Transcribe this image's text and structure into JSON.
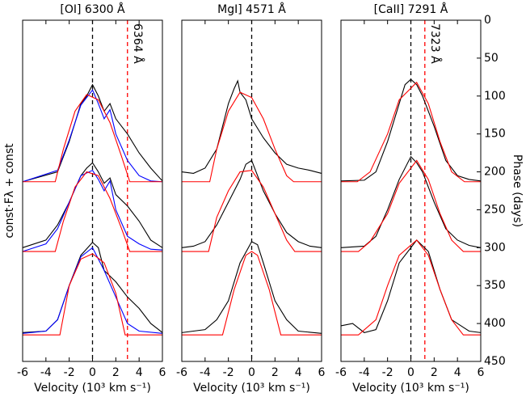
{
  "chart_data": [
    {
      "type": "line",
      "title": "[OI] 6300 Å",
      "xlabel": "Velocity (10³ km s⁻¹)",
      "ylabel": "const·Fλ + const",
      "xlim": [
        -6,
        6
      ],
      "xticks": [
        -6,
        -4,
        -2,
        0,
        2,
        4,
        6
      ],
      "ylim": [
        450,
        0
      ],
      "vlines": [
        {
          "x": 0,
          "color": "#000000"
        },
        {
          "x": 3,
          "color": "#ff0000",
          "label": "6364 Å"
        }
      ],
      "series": [
        {
          "color": "#000000",
          "x": [
            -6,
            -3,
            -2,
            -1,
            -0.5,
            0,
            0.5,
            1,
            1.5,
            2,
            3,
            4,
            5,
            6
          ],
          "values": [
            213,
            200,
            160,
            110,
            100,
            85,
            100,
            120,
            110,
            130,
            150,
            175,
            195,
            212
          ]
        },
        {
          "color": "#0000ff",
          "x": [
            -6,
            -3,
            -2,
            -1,
            0,
            0.5,
            1,
            1.5,
            2,
            3,
            4,
            5,
            6
          ],
          "values": [
            213,
            198,
            158,
            112,
            92,
            110,
            130,
            118,
            150,
            185,
            205,
            212,
            213
          ]
        },
        {
          "color": "#ff0000",
          "x": [
            -6,
            -3.2,
            -2.5,
            -1.5,
            -0.5,
            0.5,
            1.5,
            2.5,
            3.2,
            6
          ],
          "values": [
            213,
            213,
            170,
            120,
            98,
            105,
            135,
            180,
            213,
            213
          ]
        },
        {
          "color": "#000000",
          "x": [
            -6,
            -4,
            -3,
            -2,
            -1,
            -0.5,
            0,
            0.5,
            1,
            1.5,
            2,
            3,
            4,
            5,
            6
          ],
          "values": [
            300,
            290,
            270,
            240,
            205,
            195,
            188,
            200,
            215,
            208,
            230,
            245,
            265,
            290,
            300
          ]
        },
        {
          "color": "#0000ff",
          "x": [
            -6,
            -4,
            -3,
            -2,
            -1,
            0,
            0.5,
            1,
            1.5,
            2,
            3,
            4,
            5,
            6
          ],
          "values": [
            305,
            295,
            275,
            240,
            205,
            198,
            210,
            225,
            212,
            250,
            285,
            295,
            302,
            303
          ]
        },
        {
          "color": "#ff0000",
          "x": [
            -6,
            -3.2,
            -2.5,
            -1.5,
            -0.5,
            0.5,
            1.5,
            2.5,
            3.2,
            6
          ],
          "values": [
            305,
            305,
            265,
            220,
            200,
            205,
            235,
            275,
            305,
            305
          ]
        },
        {
          "color": "#000000",
          "x": [
            -6,
            -4,
            -3,
            -2,
            -1,
            0,
            0.5,
            1,
            2,
            3,
            4,
            5,
            6
          ],
          "values": [
            412,
            410,
            395,
            350,
            310,
            293,
            300,
            330,
            345,
            365,
            380,
            400,
            412
          ]
        },
        {
          "color": "#0000ff",
          "x": [
            -6,
            -4,
            -3,
            -2,
            -1,
            0,
            1,
            2,
            3,
            4,
            6
          ],
          "values": [
            413,
            410,
            395,
            350,
            312,
            300,
            330,
            365,
            400,
            410,
            413
          ]
        },
        {
          "color": "#ff0000",
          "x": [
            -6,
            -2.8,
            -2,
            -1,
            0,
            1,
            2,
            2.8,
            6
          ],
          "values": [
            415,
            415,
            350,
            315,
            308,
            320,
            360,
            415,
            415
          ]
        }
      ]
    },
    {
      "type": "line",
      "title": "MgI] 4571 Å",
      "xlabel": "Velocity (10³ km s⁻¹)",
      "xlim": [
        -6,
        6
      ],
      "xticks": [
        -6,
        -4,
        -2,
        0,
        2,
        4,
        6
      ],
      "ylim": [
        450,
        0
      ],
      "vlines": [
        {
          "x": 0,
          "color": "#000000"
        }
      ],
      "series": [
        {
          "color": "#000000",
          "x": [
            -6,
            -5,
            -4,
            -3,
            -2,
            -1.5,
            -1.2,
            -1,
            -0.5,
            0,
            1,
            2,
            3,
            4,
            5,
            6
          ],
          "values": [
            200,
            202,
            195,
            170,
            110,
            90,
            80,
            95,
            105,
            130,
            155,
            175,
            190,
            195,
            198,
            202
          ]
        },
        {
          "color": "#ff0000",
          "x": [
            -6,
            -3.6,
            -3,
            -2,
            -1,
            0,
            1,
            2,
            3,
            3.6,
            6
          ],
          "values": [
            213,
            213,
            170,
            120,
            95,
            102,
            130,
            170,
            205,
            213,
            213
          ]
        },
        {
          "color": "#000000",
          "x": [
            -6,
            -5,
            -4,
            -3,
            -2,
            -1,
            -0.5,
            0,
            0.5,
            1,
            2,
            3,
            4,
            5,
            6
          ],
          "values": [
            300,
            298,
            292,
            270,
            240,
            210,
            190,
            185,
            205,
            225,
            255,
            280,
            292,
            298,
            300
          ]
        },
        {
          "color": "#ff0000",
          "x": [
            -6,
            -3.7,
            -3,
            -2,
            -1,
            0,
            1,
            2,
            3,
            3.7,
            6
          ],
          "values": [
            305,
            305,
            260,
            225,
            200,
            198,
            220,
            255,
            290,
            305,
            305
          ]
        },
        {
          "color": "#000000",
          "x": [
            -6,
            -4,
            -3,
            -2,
            -1,
            0,
            0.5,
            1,
            2,
            3,
            4,
            6
          ],
          "values": [
            412,
            408,
            395,
            370,
            320,
            292,
            296,
            320,
            370,
            395,
            410,
            413
          ]
        },
        {
          "color": "#ff0000",
          "x": [
            -6,
            -2.5,
            -1.5,
            -0.5,
            0,
            0.5,
            1.5,
            2.5,
            6
          ],
          "values": [
            415,
            415,
            355,
            310,
            305,
            310,
            355,
            415,
            415
          ]
        }
      ]
    },
    {
      "type": "line",
      "title": "[CaII] 7291 Å",
      "xlabel": "Velocity (10³ km s⁻¹)",
      "y2label": "Phase (days)",
      "xlim": [
        -6,
        6
      ],
      "xticks": [
        -6,
        -4,
        -2,
        0,
        2,
        4,
        6
      ],
      "ylim": [
        450,
        0
      ],
      "yticks": [
        0,
        50,
        100,
        150,
        200,
        250,
        300,
        350,
        400,
        450
      ],
      "vlines": [
        {
          "x": 0,
          "color": "#000000"
        },
        {
          "x": 1.2,
          "color": "#ff0000",
          "label": "7323 Å"
        }
      ],
      "series": [
        {
          "color": "#000000",
          "x": [
            -6,
            -4,
            -3,
            -2,
            -1,
            -0.5,
            0,
            0.5,
            1,
            2,
            3,
            4,
            5,
            6
          ],
          "values": [
            212,
            211,
            200,
            160,
            110,
            85,
            78,
            85,
            100,
            140,
            185,
            205,
            210,
            212
          ]
        },
        {
          "color": "#ff0000",
          "x": [
            -6,
            -4.6,
            -3.5,
            -2,
            -1,
            0.5,
            1.5,
            2.5,
            3.5,
            4.6,
            6
          ],
          "values": [
            213,
            213,
            200,
            150,
            105,
            82,
            110,
            160,
            200,
            213,
            213
          ]
        },
        {
          "color": "#000000",
          "x": [
            -6,
            -4,
            -3,
            -2,
            -1,
            0,
            0.5,
            1,
            2,
            3,
            4,
            5,
            6
          ],
          "values": [
            300,
            298,
            285,
            250,
            210,
            180,
            188,
            200,
            240,
            275,
            290,
            297,
            300
          ]
        },
        {
          "color": "#ff0000",
          "x": [
            -6,
            -4.5,
            -3.5,
            -2,
            -1,
            0.5,
            1.5,
            2.5,
            3.5,
            4.5,
            6
          ],
          "values": [
            305,
            305,
            292,
            255,
            215,
            185,
            210,
            255,
            290,
            305,
            305
          ]
        },
        {
          "color": "#000000",
          "x": [
            -6,
            -5,
            -4,
            -3,
            -2,
            -1,
            0.5,
            1.5,
            2.5,
            3.5,
            4.5,
            5,
            6
          ],
          "values": [
            403,
            400,
            412,
            408,
            370,
            320,
            290,
            305,
            355,
            395,
            405,
            410,
            412
          ]
        },
        {
          "color": "#ff0000",
          "x": [
            -6,
            -4.5,
            -3,
            -2,
            -1,
            0.5,
            1.5,
            2.5,
            3.5,
            4.5,
            6
          ],
          "values": [
            415,
            415,
            395,
            350,
            310,
            290,
            310,
            355,
            395,
            415,
            415
          ]
        }
      ]
    }
  ]
}
